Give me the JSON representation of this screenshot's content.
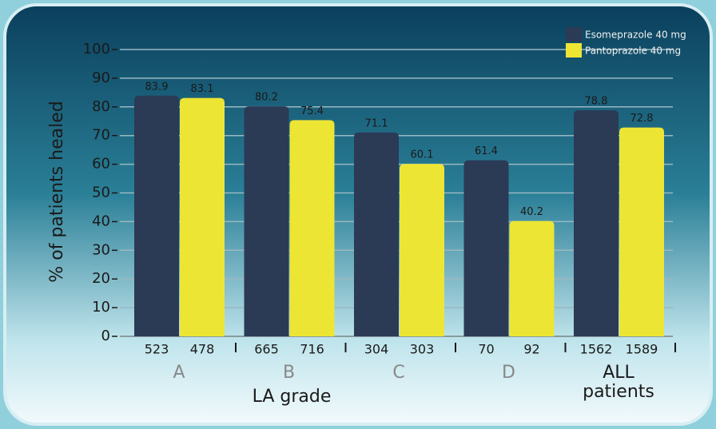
{
  "chart_data": {
    "type": "bar",
    "y_axis_label": "% of patients healed",
    "x_axis_label": "LA grade",
    "categories": [
      "A",
      "B",
      "C",
      "D",
      "ALL patients"
    ],
    "series": [
      {
        "name": "Esomeprazole 40 mg",
        "color": "#2b3a55",
        "values": [
          83.9,
          80.2,
          71.1,
          61.4,
          78.8
        ],
        "n": [
          523,
          665,
          304,
          70,
          1562
        ]
      },
      {
        "name": "Pantoprazole 40 mg",
        "color": "#ece534",
        "values": [
          83.1,
          75.4,
          60.1,
          40.2,
          72.8
        ],
        "n": [
          478,
          716,
          303,
          92,
          1589
        ]
      }
    ],
    "ylim": [
      0,
      100
    ],
    "yticks": [
      0,
      10,
      20,
      30,
      40,
      50,
      60,
      70,
      80,
      90,
      100
    ],
    "grid": true,
    "legend": "top-right"
  }
}
